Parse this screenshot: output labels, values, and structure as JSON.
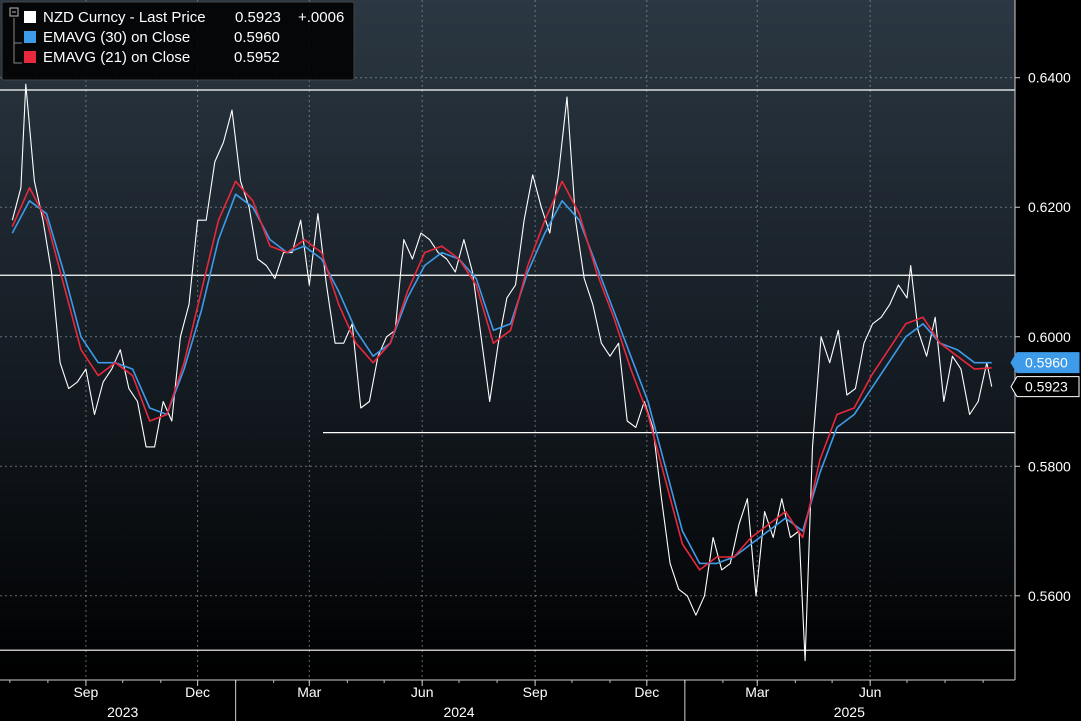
{
  "chart_data": {
    "type": "line",
    "title": "",
    "legend_placement": "top-left",
    "grid": true,
    "ylim": [
      0.547,
      0.652
    ],
    "y_ticks": [
      "0.6400",
      "0.6200",
      "0.6000",
      "0.5800",
      "0.5600"
    ],
    "x_month_ticks": [
      "Sep",
      "Dec",
      "Mar",
      "Jun",
      "Sep",
      "Dec",
      "Mar",
      "Jun"
    ],
    "x_year_labels": [
      "2023",
      "2024",
      "2025"
    ],
    "legend": [
      {
        "label": "NZD Curncy - Last Price",
        "value": "0.5923",
        "change": "+.0006",
        "color": "#ffffff"
      },
      {
        "label": "EMAVG (30)  on Close",
        "value": "0.5960",
        "change": "",
        "color": "#3d9be9"
      },
      {
        "label": "EMAVG (21)  on Close",
        "value": "0.5952",
        "change": "",
        "color": "#e8283c"
      }
    ],
    "badges": [
      {
        "value": "0.5960",
        "bg": "#3d9be9",
        "fg": "#ffffff"
      },
      {
        "value": "0.5923",
        "bg": "#000000",
        "fg": "#ffffff"
      }
    ],
    "reference_lines": [
      0.6381,
      0.6095,
      0.5852,
      0.5516
    ],
    "series": [
      {
        "name": "NZD Curncy - Last Price",
        "color": "#ffffff",
        "points": [
          [
            "2023-07-03",
            0.618
          ],
          [
            "2023-07-10",
            0.623
          ],
          [
            "2023-07-14",
            0.639
          ],
          [
            "2023-07-21",
            0.624
          ],
          [
            "2023-07-28",
            0.618
          ],
          [
            "2023-08-04",
            0.61
          ],
          [
            "2023-08-11",
            0.596
          ],
          [
            "2023-08-18",
            0.592
          ],
          [
            "2023-08-25",
            0.593
          ],
          [
            "2023-09-01",
            0.595
          ],
          [
            "2023-09-08",
            0.588
          ],
          [
            "2023-09-15",
            0.593
          ],
          [
            "2023-09-22",
            0.595
          ],
          [
            "2023-09-29",
            0.598
          ],
          [
            "2023-10-06",
            0.592
          ],
          [
            "2023-10-13",
            0.59
          ],
          [
            "2023-10-20",
            0.583
          ],
          [
            "2023-10-27",
            0.583
          ],
          [
            "2023-11-03",
            0.59
          ],
          [
            "2023-11-10",
            0.587
          ],
          [
            "2023-11-17",
            0.6
          ],
          [
            "2023-11-24",
            0.605
          ],
          [
            "2023-12-01",
            0.618
          ],
          [
            "2023-12-08",
            0.618
          ],
          [
            "2023-12-15",
            0.627
          ],
          [
            "2023-12-22",
            0.63
          ],
          [
            "2023-12-29",
            0.635
          ],
          [
            "2024-01-05",
            0.624
          ],
          [
            "2024-01-12",
            0.62
          ],
          [
            "2024-01-19",
            0.612
          ],
          [
            "2024-01-26",
            0.611
          ],
          [
            "2024-02-02",
            0.609
          ],
          [
            "2024-02-09",
            0.613
          ],
          [
            "2024-02-16",
            0.613
          ],
          [
            "2024-02-23",
            0.618
          ],
          [
            "2024-03-01",
            0.608
          ],
          [
            "2024-03-08",
            0.619
          ],
          [
            "2024-03-15",
            0.608
          ],
          [
            "2024-03-22",
            0.599
          ],
          [
            "2024-03-29",
            0.599
          ],
          [
            "2024-04-05",
            0.602
          ],
          [
            "2024-04-12",
            0.589
          ],
          [
            "2024-04-19",
            0.59
          ],
          [
            "2024-04-26",
            0.597
          ],
          [
            "2024-05-03",
            0.6
          ],
          [
            "2024-05-10",
            0.601
          ],
          [
            "2024-05-17",
            0.615
          ],
          [
            "2024-05-24",
            0.612
          ],
          [
            "2024-05-31",
            0.616
          ],
          [
            "2024-06-07",
            0.615
          ],
          [
            "2024-06-14",
            0.613
          ],
          [
            "2024-06-21",
            0.612
          ],
          [
            "2024-06-28",
            0.61
          ],
          [
            "2024-07-05",
            0.615
          ],
          [
            "2024-07-12",
            0.61
          ],
          [
            "2024-07-19",
            0.6
          ],
          [
            "2024-07-26",
            0.59
          ],
          [
            "2024-08-02",
            0.599
          ],
          [
            "2024-08-09",
            0.606
          ],
          [
            "2024-08-16",
            0.608
          ],
          [
            "2024-08-23",
            0.618
          ],
          [
            "2024-08-30",
            0.625
          ],
          [
            "2024-09-06",
            0.62
          ],
          [
            "2024-09-13",
            0.616
          ],
          [
            "2024-09-20",
            0.625
          ],
          [
            "2024-09-27",
            0.637
          ],
          [
            "2024-10-04",
            0.618
          ],
          [
            "2024-10-11",
            0.609
          ],
          [
            "2024-10-18",
            0.605
          ],
          [
            "2024-10-25",
            0.599
          ],
          [
            "2024-11-01",
            0.597
          ],
          [
            "2024-11-08",
            0.599
          ],
          [
            "2024-11-15",
            0.587
          ],
          [
            "2024-11-22",
            0.586
          ],
          [
            "2024-11-29",
            0.59
          ],
          [
            "2024-12-06",
            0.586
          ],
          [
            "2024-12-13",
            0.575
          ],
          [
            "2024-12-20",
            0.565
          ],
          [
            "2024-12-27",
            0.561
          ],
          [
            "2025-01-03",
            0.56
          ],
          [
            "2025-01-10",
            0.557
          ],
          [
            "2025-01-17",
            0.56
          ],
          [
            "2025-01-24",
            0.569
          ],
          [
            "2025-01-31",
            0.564
          ],
          [
            "2025-02-07",
            0.565
          ],
          [
            "2025-02-14",
            0.571
          ],
          [
            "2025-02-21",
            0.575
          ],
          [
            "2025-02-28",
            0.56
          ],
          [
            "2025-03-07",
            0.573
          ],
          [
            "2025-03-14",
            0.569
          ],
          [
            "2025-03-21",
            0.575
          ],
          [
            "2025-03-28",
            0.569
          ],
          [
            "2025-04-04",
            0.57
          ],
          [
            "2025-04-09",
            0.55
          ],
          [
            "2025-04-15",
            0.583
          ],
          [
            "2025-04-22",
            0.6
          ],
          [
            "2025-04-29",
            0.596
          ],
          [
            "2025-05-06",
            0.601
          ],
          [
            "2025-05-13",
            0.591
          ],
          [
            "2025-05-20",
            0.592
          ],
          [
            "2025-05-27",
            0.599
          ],
          [
            "2025-06-03",
            0.602
          ],
          [
            "2025-06-10",
            0.603
          ],
          [
            "2025-06-17",
            0.605
          ],
          [
            "2025-06-24",
            0.608
          ],
          [
            "2025-07-01",
            0.606
          ],
          [
            "2025-07-04",
            0.611
          ],
          [
            "2025-07-10",
            0.601
          ],
          [
            "2025-07-17",
            0.597
          ],
          [
            "2025-07-24",
            0.603
          ],
          [
            "2025-07-31",
            0.59
          ],
          [
            "2025-08-07",
            0.597
          ],
          [
            "2025-08-14",
            0.595
          ],
          [
            "2025-08-21",
            0.588
          ],
          [
            "2025-08-28",
            0.59
          ],
          [
            "2025-09-04",
            0.596
          ],
          [
            "2025-09-08",
            0.5923
          ]
        ]
      },
      {
        "name": "EMAVG (30) on Close",
        "color": "#3d9be9",
        "points": [
          [
            "2023-07-03",
            0.616
          ],
          [
            "2023-07-17",
            0.621
          ],
          [
            "2023-07-31",
            0.619
          ],
          [
            "2023-08-14",
            0.61
          ],
          [
            "2023-08-28",
            0.6
          ],
          [
            "2023-09-11",
            0.596
          ],
          [
            "2023-09-25",
            0.596
          ],
          [
            "2023-10-09",
            0.595
          ],
          [
            "2023-10-23",
            0.589
          ],
          [
            "2023-11-06",
            0.588
          ],
          [
            "2023-11-20",
            0.595
          ],
          [
            "2023-12-04",
            0.604
          ],
          [
            "2023-12-18",
            0.615
          ],
          [
            "2024-01-01",
            0.622
          ],
          [
            "2024-01-15",
            0.62
          ],
          [
            "2024-01-29",
            0.615
          ],
          [
            "2024-02-12",
            0.613
          ],
          [
            "2024-02-26",
            0.614
          ],
          [
            "2024-03-11",
            0.612
          ],
          [
            "2024-03-25",
            0.607
          ],
          [
            "2024-04-08",
            0.601
          ],
          [
            "2024-04-22",
            0.597
          ],
          [
            "2024-05-06",
            0.599
          ],
          [
            "2024-05-20",
            0.606
          ],
          [
            "2024-06-03",
            0.611
          ],
          [
            "2024-06-17",
            0.613
          ],
          [
            "2024-07-01",
            0.612
          ],
          [
            "2024-07-15",
            0.609
          ],
          [
            "2024-07-29",
            0.601
          ],
          [
            "2024-08-12",
            0.602
          ],
          [
            "2024-08-26",
            0.61
          ],
          [
            "2024-09-09",
            0.616
          ],
          [
            "2024-09-23",
            0.621
          ],
          [
            "2024-10-07",
            0.618
          ],
          [
            "2024-10-21",
            0.611
          ],
          [
            "2024-11-04",
            0.604
          ],
          [
            "2024-11-18",
            0.597
          ],
          [
            "2024-12-02",
            0.59
          ],
          [
            "2024-12-16",
            0.58
          ],
          [
            "2024-12-30",
            0.57
          ],
          [
            "2025-01-13",
            0.565
          ],
          [
            "2025-01-27",
            0.565
          ],
          [
            "2025-02-10",
            0.566
          ],
          [
            "2025-02-24",
            0.568
          ],
          [
            "2025-03-10",
            0.57
          ],
          [
            "2025-03-24",
            0.572
          ],
          [
            "2025-04-07",
            0.57
          ],
          [
            "2025-04-21",
            0.579
          ],
          [
            "2025-05-05",
            0.586
          ],
          [
            "2025-05-19",
            0.588
          ],
          [
            "2025-06-02",
            0.592
          ],
          [
            "2025-06-16",
            0.596
          ],
          [
            "2025-06-30",
            0.6
          ],
          [
            "2025-07-14",
            0.602
          ],
          [
            "2025-07-28",
            0.599
          ],
          [
            "2025-08-11",
            0.598
          ],
          [
            "2025-08-25",
            0.596
          ],
          [
            "2025-09-08",
            0.596
          ]
        ]
      },
      {
        "name": "EMAVG (21) on Close",
        "color": "#e8283c",
        "points": [
          [
            "2023-07-03",
            0.617
          ],
          [
            "2023-07-17",
            0.623
          ],
          [
            "2023-07-31",
            0.618
          ],
          [
            "2023-08-14",
            0.608
          ],
          [
            "2023-08-28",
            0.598
          ],
          [
            "2023-09-11",
            0.594
          ],
          [
            "2023-09-25",
            0.596
          ],
          [
            "2023-10-09",
            0.594
          ],
          [
            "2023-10-23",
            0.587
          ],
          [
            "2023-11-06",
            0.588
          ],
          [
            "2023-11-20",
            0.596
          ],
          [
            "2023-12-04",
            0.607
          ],
          [
            "2023-12-18",
            0.618
          ],
          [
            "2024-01-01",
            0.624
          ],
          [
            "2024-01-15",
            0.621
          ],
          [
            "2024-01-29",
            0.614
          ],
          [
            "2024-02-12",
            0.613
          ],
          [
            "2024-02-26",
            0.615
          ],
          [
            "2024-03-11",
            0.613
          ],
          [
            "2024-03-25",
            0.605
          ],
          [
            "2024-04-08",
            0.599
          ],
          [
            "2024-04-22",
            0.596
          ],
          [
            "2024-05-06",
            0.599
          ],
          [
            "2024-05-20",
            0.607
          ],
          [
            "2024-06-03",
            0.613
          ],
          [
            "2024-06-17",
            0.614
          ],
          [
            "2024-07-01",
            0.612
          ],
          [
            "2024-07-15",
            0.608
          ],
          [
            "2024-07-29",
            0.599
          ],
          [
            "2024-08-12",
            0.601
          ],
          [
            "2024-08-26",
            0.611
          ],
          [
            "2024-09-09",
            0.618
          ],
          [
            "2024-09-23",
            0.624
          ],
          [
            "2024-10-07",
            0.619
          ],
          [
            "2024-10-21",
            0.61
          ],
          [
            "2024-11-04",
            0.603
          ],
          [
            "2024-11-18",
            0.595
          ],
          [
            "2024-12-02",
            0.588
          ],
          [
            "2024-12-16",
            0.578
          ],
          [
            "2024-12-30",
            0.568
          ],
          [
            "2025-01-13",
            0.564
          ],
          [
            "2025-01-27",
            0.566
          ],
          [
            "2025-02-10",
            0.566
          ],
          [
            "2025-02-24",
            0.569
          ],
          [
            "2025-03-10",
            0.571
          ],
          [
            "2025-03-24",
            0.573
          ],
          [
            "2025-04-07",
            0.569
          ],
          [
            "2025-04-21",
            0.581
          ],
          [
            "2025-05-05",
            0.588
          ],
          [
            "2025-05-19",
            0.589
          ],
          [
            "2025-06-02",
            0.594
          ],
          [
            "2025-06-16",
            0.598
          ],
          [
            "2025-06-30",
            0.602
          ],
          [
            "2025-07-14",
            0.603
          ],
          [
            "2025-07-28",
            0.599
          ],
          [
            "2025-08-11",
            0.597
          ],
          [
            "2025-08-25",
            0.595
          ],
          [
            "2025-09-08",
            0.5952
          ]
        ]
      }
    ]
  }
}
